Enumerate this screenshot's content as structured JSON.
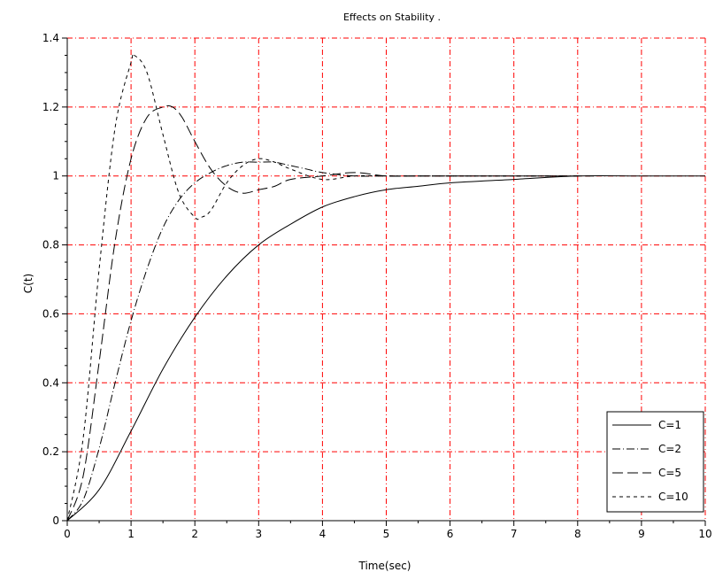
{
  "chart_data": {
    "type": "line",
    "title": "Effects on Stability .",
    "xlabel": "Time(sec)",
    "ylabel": "C(t)",
    "xlim": [
      0,
      10
    ],
    "ylim": [
      0,
      1.4
    ],
    "xticks": [
      "0",
      "1",
      "2",
      "3",
      "4",
      "5",
      "6",
      "7",
      "8",
      "9",
      "10"
    ],
    "yticks": [
      "0",
      "0.2",
      "0.4",
      "0.6",
      "0.8",
      "1",
      "1.2",
      "1.4"
    ],
    "grid": true,
    "grid_color": "#ff0000",
    "legend_position": "bottom-right",
    "series": [
      {
        "name": "C=1",
        "style": "solid",
        "x": [
          0,
          0.5,
          1,
          1.5,
          2,
          2.5,
          3,
          3.5,
          4,
          4.5,
          5,
          5.5,
          6,
          7,
          8,
          9,
          10
        ],
        "y": [
          0,
          0.09,
          0.26,
          0.44,
          0.59,
          0.71,
          0.8,
          0.86,
          0.91,
          0.94,
          0.96,
          0.97,
          0.98,
          0.99,
          1.0,
          1.0,
          1.0
        ]
      },
      {
        "name": "C=2",
        "style": "dashdot",
        "x": [
          0,
          0.25,
          0.5,
          0.75,
          1,
          1.25,
          1.5,
          1.75,
          2,
          2.25,
          2.5,
          2.75,
          3,
          3.25,
          3.5,
          3.75,
          4,
          4.5,
          5,
          5.5,
          6,
          7,
          8
        ],
        "y": [
          0,
          0.06,
          0.21,
          0.4,
          0.58,
          0.73,
          0.85,
          0.93,
          0.98,
          1.01,
          1.03,
          1.04,
          1.04,
          1.04,
          1.03,
          1.02,
          1.01,
          1.0,
          1.0,
          1.0,
          1.0,
          1.0,
          1.0
        ]
      },
      {
        "name": "C=5",
        "style": "longdash",
        "x": [
          0,
          0.25,
          0.5,
          0.75,
          1,
          1.25,
          1.5,
          1.65,
          1.8,
          2,
          2.25,
          2.5,
          2.75,
          3,
          3.25,
          3.5,
          4,
          4.5,
          5,
          5.5,
          6,
          7,
          8,
          8.25
        ],
        "y": [
          0,
          0.13,
          0.46,
          0.81,
          1.05,
          1.17,
          1.2,
          1.2,
          1.17,
          1.1,
          1.02,
          0.97,
          0.95,
          0.96,
          0.97,
          0.99,
          1.0,
          1.01,
          1.0,
          1.0,
          1.0,
          1.0,
          1.0,
          1.0
        ]
      },
      {
        "name": "C=10",
        "style": "dashed",
        "x": [
          0,
          0.25,
          0.5,
          0.75,
          1,
          1.05,
          1.25,
          1.5,
          1.75,
          2,
          2.1,
          2.25,
          2.5,
          2.75,
          3,
          3.25,
          3.5,
          4,
          4.5,
          5,
          5.5,
          6,
          7,
          8
        ],
        "y": [
          0,
          0.24,
          0.73,
          1.14,
          1.33,
          1.35,
          1.3,
          1.12,
          0.95,
          0.88,
          0.88,
          0.9,
          0.98,
          1.03,
          1.05,
          1.04,
          1.02,
          0.99,
          1.0,
          1.0,
          1.0,
          1.0,
          1.0,
          1.0
        ]
      }
    ]
  }
}
